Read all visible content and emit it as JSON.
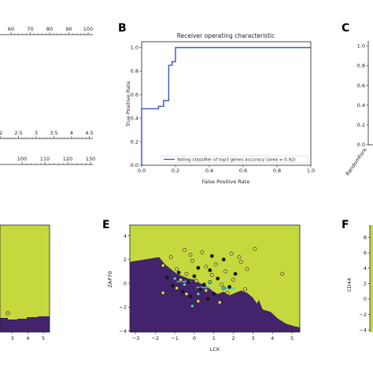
{
  "colors": {
    "yellow_region": "#c5d93e",
    "purple_region": "#43236b",
    "roc_line": "#3b55b8",
    "axis": "#222222",
    "point_dark": "#1a1a1a",
    "point_light": "#d8e04a",
    "point_cyan": "#55c9c0"
  },
  "panel_letters": {
    "b": "B",
    "c": "C",
    "e": "E",
    "f": "F"
  },
  "nomogram_fragment": {
    "scale1_ticks": [
      "60",
      "70",
      "80",
      "90",
      "100"
    ],
    "scale2_ticks": [
      "2",
      "2.5",
      "3",
      "3.5",
      "4",
      "4.5"
    ],
    "scale3_ticks": [
      "100",
      "110",
      "120",
      "130"
    ]
  },
  "chart_data": [
    {
      "panel": "B",
      "type": "line",
      "title": "Receiver operating characteristic",
      "xlabel": "False Positive Rate",
      "ylabel": "True Positive Rate",
      "xlim": [
        0,
        1
      ],
      "ylim": [
        0,
        1.05
      ],
      "xticks": [
        "0.0",
        "0.2",
        "0.4",
        "0.6",
        "0.8",
        "1.0"
      ],
      "yticks": [
        "0.0",
        "0.2",
        "0.4",
        "0.6",
        "0.8",
        "1.0"
      ],
      "legend_position": "lower-right",
      "series": [
        {
          "name": "Voting classifier of top3 genes accuracy (area = 0.92)",
          "x": [
            0.0,
            0.0,
            0.1,
            0.1,
            0.13,
            0.13,
            0.16,
            0.16,
            0.18,
            0.18,
            0.2,
            0.2,
            1.0
          ],
          "y": [
            0.0,
            0.48,
            0.48,
            0.5,
            0.5,
            0.55,
            0.55,
            0.85,
            0.85,
            0.88,
            0.88,
            1.0,
            1.0
          ]
        }
      ]
    },
    {
      "panel": "C",
      "type": "bar",
      "yticks": [
        "1.0",
        "0.8",
        "0.6",
        "0.4",
        "0.2",
        "0.0"
      ],
      "ylim": [
        0,
        1.05
      ],
      "categories": [
        "RandomFore"
      ]
    },
    {
      "panel": "D",
      "type": "heatmap",
      "xticks": [
        "3",
        "4",
        "5"
      ],
      "xlim": [
        2.2,
        5.4
      ]
    },
    {
      "panel": "E",
      "type": "heatmap",
      "xlabel": "LCK",
      "ylabel": "ZAP70",
      "xlim": [
        -3.3,
        5.4
      ],
      "ylim": [
        -4.1,
        4.9
      ],
      "xticks": [
        "−3",
        "−2",
        "−1",
        "0",
        "1",
        "2",
        "3",
        "4",
        "5"
      ],
      "yticks": [
        "4",
        "2",
        "0",
        "−2",
        "−4"
      ],
      "points": [
        {
          "x": 0.9,
          "y": 2.3,
          "c": "dark"
        },
        {
          "x": 1.5,
          "y": 2.0,
          "c": "dark"
        },
        {
          "x": 0.2,
          "y": 1.3,
          "c": "dark"
        },
        {
          "x": 0.8,
          "y": 1.1,
          "c": "dark"
        },
        {
          "x": -0.8,
          "y": 0.9,
          "c": "dark"
        },
        {
          "x": 0.0,
          "y": 0.6,
          "c": "dark"
        },
        {
          "x": 1.2,
          "y": 0.4,
          "c": "dark"
        },
        {
          "x": -0.3,
          "y": 0.1,
          "c": "dark"
        },
        {
          "x": 0.5,
          "y": -0.1,
          "c": "dark"
        },
        {
          "x": -1.1,
          "y": -0.2,
          "c": "dark"
        },
        {
          "x": 1.8,
          "y": -0.3,
          "c": "dark"
        },
        {
          "x": 0.3,
          "y": -0.5,
          "c": "dark"
        },
        {
          "x": -0.6,
          "y": -0.7,
          "c": "dark"
        },
        {
          "x": 1.0,
          "y": -0.9,
          "c": "dark"
        },
        {
          "x": -0.2,
          "y": -1.1,
          "c": "dark"
        },
        {
          "x": 0.7,
          "y": -1.3,
          "c": "dark"
        },
        {
          "x": -1.4,
          "y": 0.5,
          "c": "dark"
        },
        {
          "x": 2.1,
          "y": 0.8,
          "c": "dark"
        },
        {
          "x": 3.1,
          "y": 2.9,
          "c": "light"
        },
        {
          "x": 4.5,
          "y": 0.8,
          "c": "light"
        },
        {
          "x": -0.5,
          "y": 2.8,
          "c": "light"
        },
        {
          "x": 0.4,
          "y": 2.6,
          "c": "light"
        },
        {
          "x": 1.9,
          "y": 2.5,
          "c": "light"
        },
        {
          "x": -1.2,
          "y": 2.2,
          "c": "light"
        },
        {
          "x": 2.4,
          "y": 1.8,
          "c": "light"
        },
        {
          "x": -0.1,
          "y": 1.9,
          "c": "light"
        },
        {
          "x": 1.1,
          "y": 1.6,
          "c": "light"
        },
        {
          "x": -1.6,
          "y": 1.5,
          "c": "light"
        },
        {
          "x": 0.6,
          "y": 1.4,
          "c": "light"
        },
        {
          "x": 2.7,
          "y": 1.2,
          "c": "light"
        },
        {
          "x": -0.9,
          "y": 1.2,
          "c": "light"
        },
        {
          "x": 1.6,
          "y": 1.0,
          "c": "light"
        },
        {
          "x": -0.4,
          "y": 0.8,
          "c": "light"
        },
        {
          "x": 0.9,
          "y": 0.7,
          "c": "light"
        },
        {
          "x": 2.0,
          "y": 0.3,
          "c": "light"
        },
        {
          "x": -0.7,
          "y": 0.3,
          "c": "light"
        },
        {
          "x": 0.1,
          "y": 0.2,
          "c": "light"
        },
        {
          "x": 1.4,
          "y": -0.1,
          "c": "light"
        },
        {
          "x": 2.6,
          "y": -0.5,
          "c": "light"
        },
        {
          "x": -0.9,
          "y": -0.4,
          "c": "light"
        },
        {
          "x": 0.6,
          "y": -0.6,
          "c": "light"
        },
        {
          "x": 1.7,
          "y": -0.8,
          "c": "light"
        },
        {
          "x": -0.4,
          "y": -0.9,
          "c": "light"
        },
        {
          "x": 0.2,
          "y": -1.5,
          "c": "light"
        },
        {
          "x": 1.3,
          "y": -1.6,
          "c": "light"
        },
        {
          "x": -1.6,
          "y": -0.8,
          "c": "light"
        },
        {
          "x": 2.3,
          "y": 2.2,
          "c": "light"
        },
        {
          "x": -0.2,
          "y": 2.4,
          "c": "light"
        },
        {
          "x": -0.5,
          "y": -0.1,
          "c": "cyan"
        },
        {
          "x": 0.8,
          "y": 0.1,
          "c": "cyan"
        },
        {
          "x": 0.2,
          "y": -0.9,
          "c": "cyan"
        },
        {
          "x": -1.0,
          "y": 0.4,
          "c": "cyan"
        },
        {
          "x": 1.5,
          "y": -0.4,
          "c": "cyan"
        },
        {
          "x": -0.1,
          "y": -1.9,
          "c": "cyan"
        }
      ]
    },
    {
      "panel": "F",
      "type": "heatmap",
      "ylabel": "CD44",
      "yticks": [
        "8",
        "6",
        "4",
        "2",
        "0",
        "−2",
        "−4"
      ],
      "ylim": [
        -4.3,
        9.6
      ]
    }
  ]
}
